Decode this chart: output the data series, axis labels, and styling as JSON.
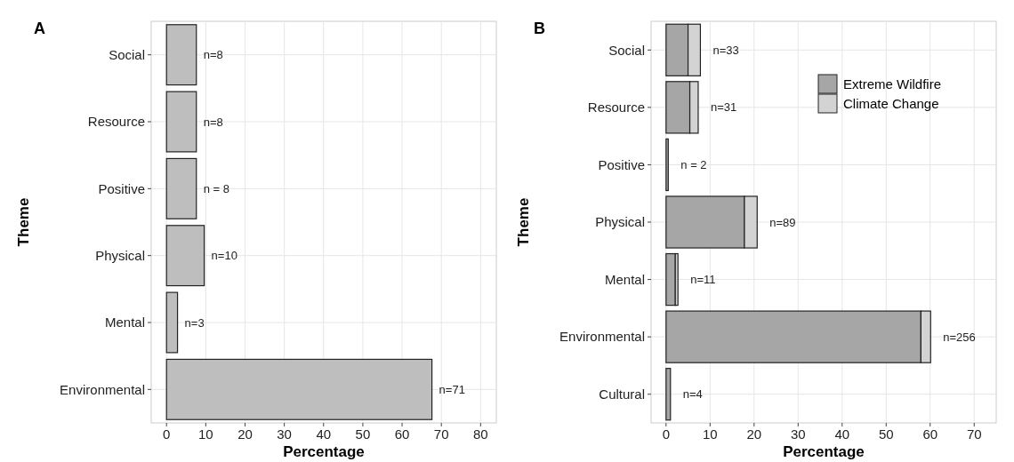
{
  "chart_data": [
    {
      "type": "bar",
      "orientation": "horizontal",
      "title": "A",
      "xlabel": "Percentage",
      "ylabel": "Theme",
      "grid": true,
      "legend": false,
      "categories": [
        "Social",
        "Resource",
        "Positive",
        "Physical",
        "Mental",
        "Environmental"
      ],
      "series": [
        {
          "color": "#bebebe",
          "values": [
            7.6,
            7.6,
            7.6,
            9.6,
            2.8,
            67.6
          ]
        }
      ],
      "xlim": [
        -3.9,
        84
      ],
      "xticks": [
        0,
        10,
        20,
        30,
        40,
        50,
        60,
        70,
        80
      ],
      "annotations": [
        "n=8",
        "n=8",
        "n = 8",
        "n=10",
        "n=3",
        "n=71"
      ]
    },
    {
      "type": "bar",
      "orientation": "horizontal",
      "stacked": true,
      "title": "B",
      "xlabel": "Percentage",
      "ylabel": "Theme",
      "grid": true,
      "legend": "top right",
      "categories": [
        "Social",
        "Resource",
        "Positive",
        "Physical",
        "Mental",
        "Environmental",
        "Cultural"
      ],
      "series": [
        {
          "name": "Extreme Wildfire",
          "color": "#a6a6a6",
          "values": [
            5.0,
            5.4,
            0.5,
            17.8,
            2.1,
            57.9,
            1.0
          ]
        },
        {
          "name": "Climate Change",
          "color": "#d3d3d3",
          "values": [
            2.8,
            1.9,
            0,
            2.9,
            0.6,
            2.2,
            0
          ]
        }
      ],
      "xlim": [
        -3.4,
        75
      ],
      "xticks": [
        0,
        10,
        20,
        30,
        40,
        50,
        60,
        70
      ],
      "annotations": [
        "n=33",
        "n=31",
        "n = 2",
        "n=89",
        "n=11",
        "n=256",
        "n=4"
      ]
    }
  ]
}
